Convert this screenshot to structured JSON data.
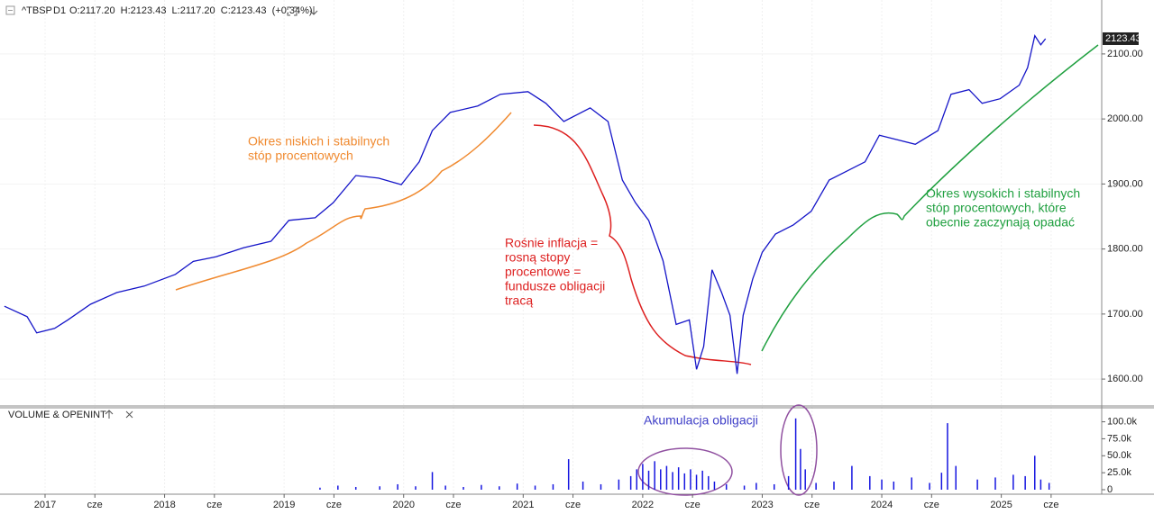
{
  "header": {
    "symbol": "^TBSP",
    "timeframe": "D1",
    "quote": "O:2117.20  H:2123.43  L:2117.20  C:2123.43  (+0.34%)"
  },
  "annotations": {
    "low_rates": [
      "Okres niskich i stabilnych",
      "stóp procentowych"
    ],
    "inflation": [
      "Rośnie inflacja =",
      "rosną stopy",
      "procentowe =",
      "fundusze obligacji",
      "tracą"
    ],
    "high_rates": [
      "Okres wysokich i stabilnych",
      "stóp procentowych, które",
      "obecnie zaczynają opadać"
    ],
    "accumulation": "Akumulacja obligacji"
  },
  "chart_data": [
    {
      "type": "line",
      "x": [
        2016.66,
        2016.85,
        2016.93,
        2017.08,
        2017.19,
        2017.38,
        2017.6,
        2017.83,
        2018.09,
        2018.24,
        2018.43,
        2018.66,
        2018.89,
        2019.04,
        2019.26,
        2019.41,
        2019.6,
        2019.79,
        2019.98,
        2020.13,
        2020.24,
        2020.39,
        2020.62,
        2020.81,
        2021.04,
        2021.19,
        2021.34,
        2021.56,
        2021.71,
        2021.83,
        2021.94,
        2022.05,
        2022.17,
        2022.28,
        2022.39,
        2022.45,
        2022.51,
        2022.58,
        2022.66,
        2022.73,
        2022.79,
        2022.84,
        2022.92,
        2023.0,
        2023.11,
        2023.26,
        2023.41,
        2023.56,
        2023.71,
        2023.86,
        2023.98,
        2024.13,
        2024.28,
        2024.47,
        2024.58,
        2024.73,
        2024.84,
        2024.99,
        2025.15,
        2025.22,
        2025.28,
        2025.33,
        2025.37
      ],
      "series": [
        {
          "name": "^TBSP",
          "color": "#1515c8",
          "values": [
            1712,
            1696,
            1671,
            1678,
            1691,
            1715,
            1733,
            1743,
            1761,
            1781,
            1788,
            1802,
            1812,
            1844,
            1848,
            1871,
            1913,
            1909,
            1899,
            1934,
            1982,
            2010,
            2020,
            2038,
            2042,
            2024,
            1996,
            2017,
            1996,
            1906,
            1871,
            1844,
            1782,
            1684,
            1691,
            1615,
            1650,
            1768,
            1733,
            1698,
            1608,
            1698,
            1754,
            1795,
            1823,
            1837,
            1858,
            1906,
            1920,
            1934,
            1975,
            1968,
            1961,
            1982,
            2038,
            2045,
            2024,
            2031,
            2052,
            2079,
            2128,
            2114,
            2123.43
          ]
        }
      ],
      "xlim": [
        2016.623,
        2025.84
      ],
      "xticks": [
        {
          "value": 2017,
          "label": "2017"
        },
        {
          "value": 2017.4167,
          "label": "cze"
        },
        {
          "value": 2018,
          "label": "2018"
        },
        {
          "value": 2018.4167,
          "label": "cze"
        },
        {
          "value": 2019,
          "label": "2019"
        },
        {
          "value": 2019.4167,
          "label": "cze"
        },
        {
          "value": 2020,
          "label": "2020"
        },
        {
          "value": 2020.4167,
          "label": "cze"
        },
        {
          "value": 2021,
          "label": "2021"
        },
        {
          "value": 2021.4167,
          "label": "cze"
        },
        {
          "value": 2022,
          "label": "2022"
        },
        {
          "value": 2022.4167,
          "label": "cze"
        },
        {
          "value": 2023,
          "label": "2023"
        },
        {
          "value": 2023.4167,
          "label": "cze"
        },
        {
          "value": 2024,
          "label": "2024"
        },
        {
          "value": 2024.4167,
          "label": "cze"
        },
        {
          "value": 2025,
          "label": "2025"
        },
        {
          "value": 2025.4167,
          "label": "cze"
        }
      ],
      "ylim": [
        1560,
        2176
      ],
      "yticks": [
        {
          "value": 1600,
          "label": "1600.00"
        },
        {
          "value": 1700,
          "label": "1700.00"
        },
        {
          "value": 1800,
          "label": "1800.00"
        },
        {
          "value": 1900,
          "label": "1900.00"
        },
        {
          "value": 2000,
          "label": "2000.00"
        },
        {
          "value": 2100,
          "label": "2100.00"
        }
      ],
      "grid": true
    },
    {
      "type": "bar",
      "title": "VOLUME & OPENINT",
      "x": [
        2019.3,
        2019.45,
        2019.6,
        2019.8,
        2019.95,
        2020.1,
        2020.24,
        2020.35,
        2020.5,
        2020.65,
        2020.8,
        2020.95,
        2021.1,
        2021.25,
        2021.38,
        2021.5,
        2021.65,
        2021.8,
        2021.9,
        2021.95,
        2022.0,
        2022.05,
        2022.1,
        2022.15,
        2022.2,
        2022.25,
        2022.3,
        2022.35,
        2022.4,
        2022.45,
        2022.5,
        2022.55,
        2022.6,
        2022.7,
        2022.85,
        2022.95,
        2023.1,
        2023.22,
        2023.28,
        2023.32,
        2023.36,
        2023.45,
        2023.6,
        2023.75,
        2023.9,
        2024.0,
        2024.1,
        2024.25,
        2024.4,
        2024.5,
        2024.55,
        2024.62,
        2024.8,
        2024.95,
        2025.1,
        2025.2,
        2025.28,
        2025.33,
        2025.4
      ],
      "series": [
        {
          "name": "Volume",
          "color": "#1515e0",
          "values": [
            3000,
            6000,
            4000,
            5000,
            8000,
            5000,
            26000,
            6000,
            4000,
            7000,
            5000,
            9000,
            6000,
            8000,
            45000,
            12000,
            8000,
            15000,
            20000,
            30000,
            38000,
            28000,
            42000,
            30000,
            35000,
            26000,
            33000,
            24000,
            30000,
            22000,
            28000,
            20000,
            12000,
            8000,
            6000,
            10000,
            8000,
            20000,
            105000,
            60000,
            30000,
            10000,
            12000,
            35000,
            20000,
            15000,
            12000,
            18000,
            10000,
            25000,
            98000,
            35000,
            15000,
            18000,
            22000,
            20000,
            50000,
            15000,
            10000
          ]
        }
      ],
      "xlim": [
        2016.623,
        2025.84
      ],
      "ylim": [
        0,
        118000
      ],
      "yticks": [
        {
          "value": 0,
          "label": "0"
        },
        {
          "value": 25000,
          "label": "25.0k"
        },
        {
          "value": 50000,
          "label": "50.0k"
        },
        {
          "value": 75000,
          "label": "75.0k"
        },
        {
          "value": 100000,
          "label": "100.0k"
        }
      ]
    }
  ]
}
